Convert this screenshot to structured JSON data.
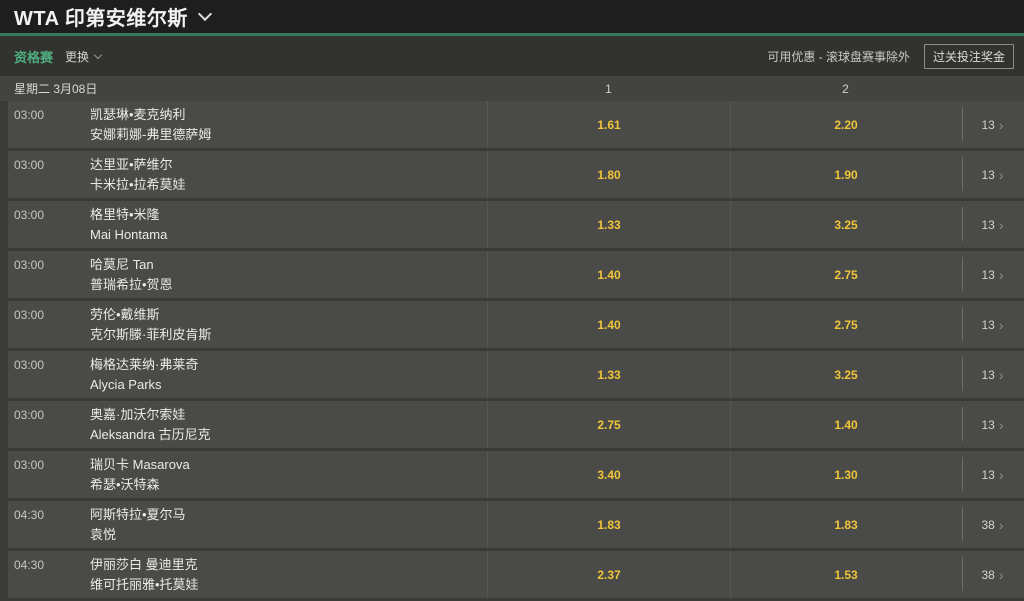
{
  "header": {
    "title": "WTA 印第安维尔斯"
  },
  "toolbar": {
    "competition": "资格赛",
    "change_label": "更换",
    "promo_text": "可用优惠 - 滚球盘赛事除外",
    "parlay_button": "过关投注奖金"
  },
  "table": {
    "date_label": "星期二 3月08日",
    "col1": "1",
    "col2": "2",
    "rows": [
      {
        "time": "03:00",
        "p1": "凯瑟琳•麦克纳利",
        "p2": "安娜莉娜-弗里德萨姆",
        "odds1": "1.61",
        "odds2": "2.20",
        "more": "13"
      },
      {
        "time": "03:00",
        "p1": "达里亚•萨维尔",
        "p2": "卡米拉•拉希莫娃",
        "odds1": "1.80",
        "odds2": "1.90",
        "more": "13"
      },
      {
        "time": "03:00",
        "p1": "格里特•米隆",
        "p2": "Mai Hontama",
        "odds1": "1.33",
        "odds2": "3.25",
        "more": "13"
      },
      {
        "time": "03:00",
        "p1": "哈莫尼 Tan",
        "p2": "普瑞希拉•贺恩",
        "odds1": "1.40",
        "odds2": "2.75",
        "more": "13"
      },
      {
        "time": "03:00",
        "p1": "劳伦•戴维斯",
        "p2": "克尔斯滕·菲利皮肯斯",
        "odds1": "1.40",
        "odds2": "2.75",
        "more": "13"
      },
      {
        "time": "03:00",
        "p1": "梅格达莱纳·弗莱奇",
        "p2": "Alycia Parks",
        "odds1": "1.33",
        "odds2": "3.25",
        "more": "13"
      },
      {
        "time": "03:00",
        "p1": "奥嘉·加沃尔索娃",
        "p2": "Aleksandra 古历尼克",
        "odds1": "2.75",
        "odds2": "1.40",
        "more": "13"
      },
      {
        "time": "03:00",
        "p1": "瑞贝卡 Masarova",
        "p2": "希瑟•沃特森",
        "odds1": "3.40",
        "odds2": "1.30",
        "more": "13"
      },
      {
        "time": "04:30",
        "p1": "阿斯特拉•夏尔马",
        "p2": "袁悦",
        "odds1": "1.83",
        "odds2": "1.83",
        "more": "38"
      },
      {
        "time": "04:30",
        "p1": "伊丽莎白 曼迪里克",
        "p2": "维可托丽雅•托莫娃",
        "odds1": "2.37",
        "odds2": "1.53",
        "more": "38"
      }
    ]
  },
  "icons": {
    "chevron_right": "›"
  },
  "colors": {
    "accent_green": "#347a61",
    "competition_green": "#4fae7f",
    "odds_yellow": "#f0c63a",
    "titlebar_bg": "#1e1e1e",
    "toolbar_bg": "#32322f",
    "date_header_bg": "#434341",
    "row_bg": "#4a4a48",
    "page_bg": "#3a3a38"
  }
}
